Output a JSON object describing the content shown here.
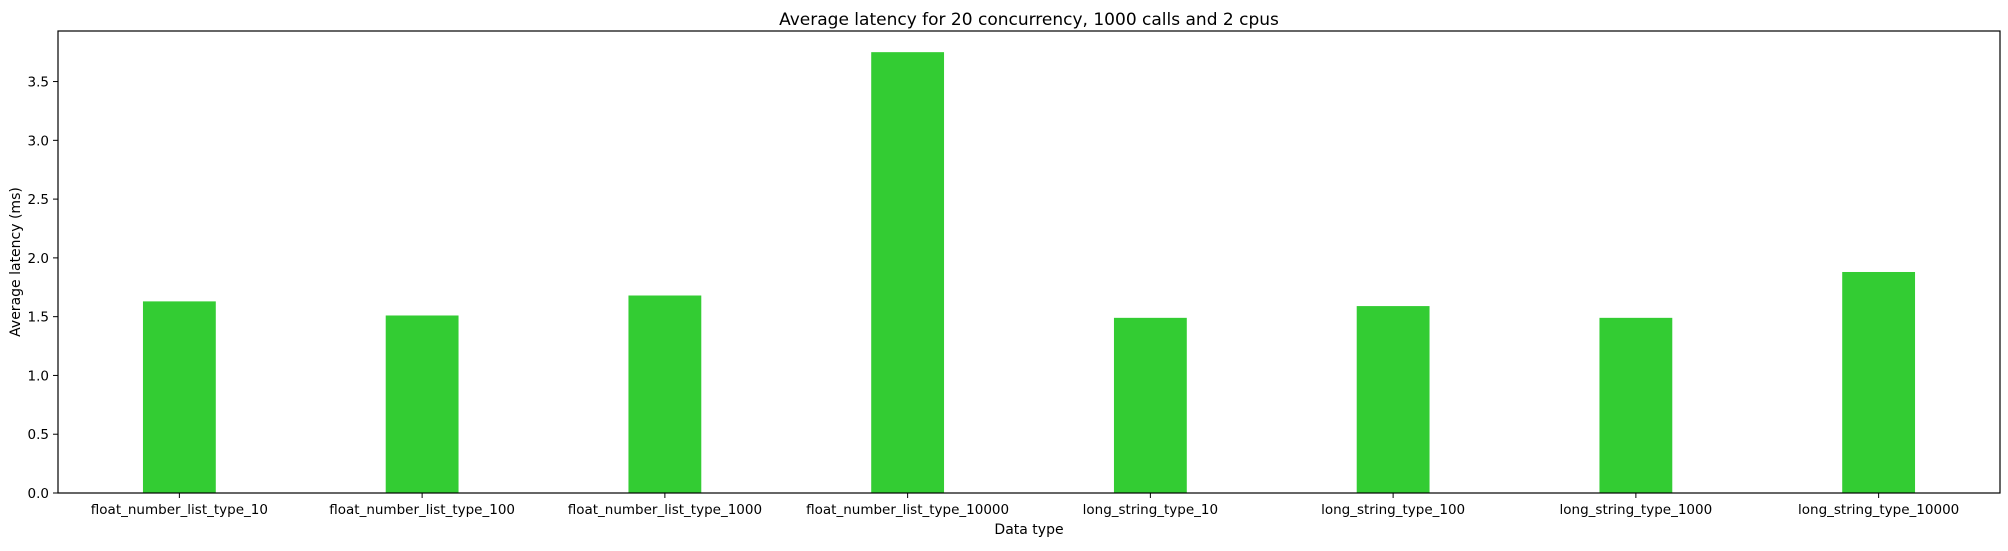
{
  "chart_data": {
    "type": "bar",
    "title": "Average latency for 20 concurrency, 1000 calls and 2 cpus",
    "xlabel": "Data type",
    "ylabel": "Average latency (ms)",
    "categories": [
      "float_number_list_type_10",
      "float_number_list_type_100",
      "float_number_list_type_1000",
      "float_number_list_type_10000",
      "long_string_type_10",
      "long_string_type_100",
      "long_string_type_1000",
      "long_string_type_10000"
    ],
    "values": [
      1.63,
      1.51,
      1.68,
      3.75,
      1.49,
      1.59,
      1.49,
      1.88
    ],
    "ylim": [
      0,
      3.93
    ],
    "yticks": [
      0.0,
      0.5,
      1.0,
      1.5,
      2.0,
      2.5,
      3.0,
      3.5
    ],
    "ytick_labels": [
      "0.0",
      "0.5",
      "1.0",
      "1.5",
      "2.0",
      "2.5",
      "3.0",
      "3.5"
    ],
    "bar_color": "#33cc33",
    "grid": false,
    "legend": "none"
  }
}
